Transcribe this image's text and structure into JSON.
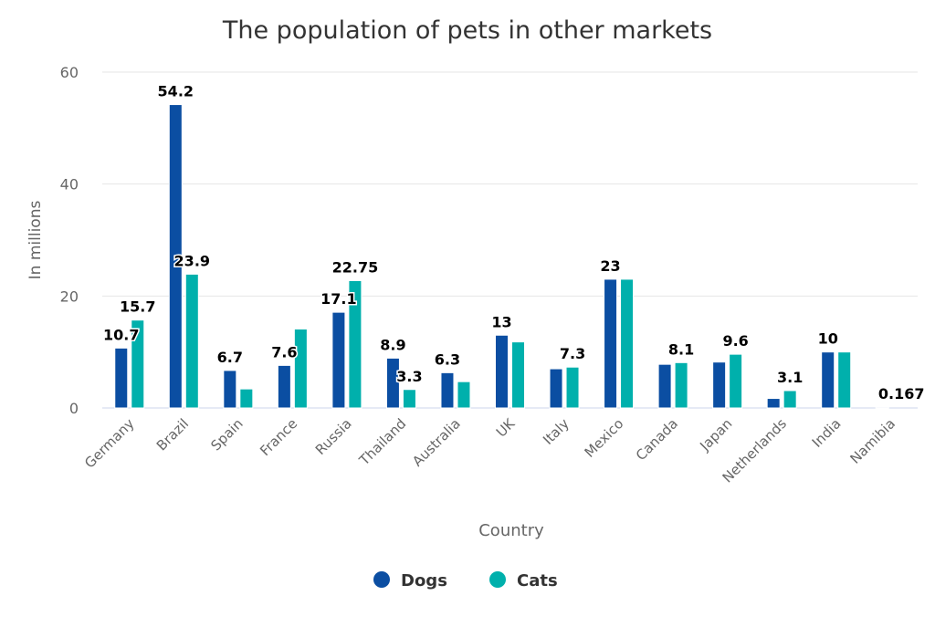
{
  "chart_data": {
    "type": "bar",
    "title": "The population of pets in other markets",
    "xlabel": "Country",
    "ylabel": "In millions",
    "ylim": [
      0,
      60
    ],
    "yticks": [
      0,
      20,
      40,
      60
    ],
    "grid": true,
    "legend_position": "bottom",
    "categories": [
      "Germany",
      "Brazil",
      "Spain",
      "France",
      "Russia",
      "Thailand",
      "Australia",
      "UK",
      "Italy",
      "Mexico",
      "Canada",
      "Japan",
      "Netherlands",
      "India",
      "Namibia"
    ],
    "series": [
      {
        "name": "Dogs",
        "color": "#0b4ea2",
        "values": [
          10.7,
          54.2,
          6.7,
          7.6,
          17.1,
          8.9,
          6.3,
          13,
          7.0,
          23,
          7.8,
          8.2,
          1.7,
          10,
          0.167
        ],
        "labels": [
          "10.7",
          "54.2",
          "6.7",
          "7.6",
          "17.1",
          "8.9",
          "6.3",
          "13",
          null,
          "23",
          null,
          null,
          null,
          "10",
          "0.167"
        ]
      },
      {
        "name": "Cats",
        "color": "#00b0ac",
        "values": [
          15.7,
          23.9,
          3.4,
          14.1,
          22.75,
          3.3,
          4.7,
          11.8,
          7.3,
          23,
          8.1,
          9.6,
          3.1,
          10,
          null
        ],
        "labels": [
          "15.7",
          "23.9",
          null,
          null,
          "22.75",
          "3.3",
          null,
          null,
          "7.3",
          null,
          "8.1",
          "9.6",
          "3.1",
          null,
          null
        ]
      }
    ]
  }
}
